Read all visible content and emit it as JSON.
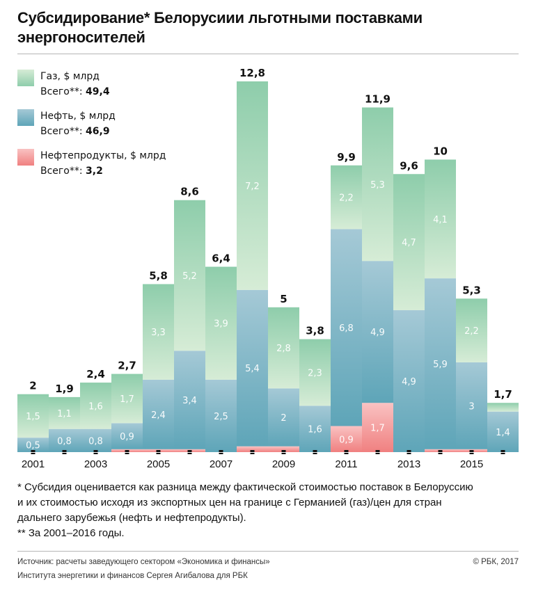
{
  "title": "Субсидирование* Белорусиии льготными поставками энергоносителей",
  "legend": [
    {
      "name": "Газ, $ млрд",
      "total_label": "Всего**:",
      "total": "49,4",
      "color_top": "#d6ecd6",
      "color_bottom": "#8ecdab"
    },
    {
      "name": "Нефть, $ млрд",
      "total_label": "Всего**:",
      "total": "46,9",
      "color_top": "#a5c9d6",
      "color_bottom": "#5ea5b8"
    },
    {
      "name": "Нефтепродукты, $ млрд",
      "total_label": "Всего**:",
      "total": "3,2",
      "color_top": "#f9c2c2",
      "color_bottom": "#f08080"
    }
  ],
  "chart_data": {
    "type": "bar",
    "stacked": true,
    "title": "Субсидирование* Белорусиии льготными поставками энергоносителей",
    "xlabel": "",
    "ylabel": "$ млрд",
    "ylim": [
      0,
      12.8
    ],
    "grid": false,
    "legend_position": "top-left",
    "categories": [
      "2001",
      "2002",
      "2003",
      "2004",
      "2005",
      "2006",
      "2007",
      "2008",
      "2009",
      "2010",
      "2011",
      "2012",
      "2013",
      "2014",
      "2015",
      "2016"
    ],
    "x_tick_labels": [
      "2001",
      "",
      "2003",
      "",
      "2005",
      "",
      "2007",
      "",
      "2009",
      "",
      "2011",
      "",
      "2013",
      "",
      "2015",
      ""
    ],
    "series": [
      {
        "name": "Нефтепродукты",
        "values": [
          0,
          0,
          0,
          0.1,
          0.1,
          0.1,
          0,
          0.2,
          0.2,
          0,
          0.9,
          1.7,
          0,
          0.1,
          0.1,
          0
        ],
        "labels": [
          "",
          "",
          "",
          "",
          "",
          "",
          "",
          "",
          "",
          "",
          "0,9",
          "1,7",
          "",
          "",
          "",
          ""
        ]
      },
      {
        "name": "Нефть",
        "values": [
          0.5,
          0.8,
          0.8,
          0.9,
          2.4,
          3.4,
          2.5,
          5.4,
          2,
          1.6,
          6.8,
          4.9,
          4.9,
          5.9,
          3,
          1.4
        ],
        "labels": [
          "0,5",
          "0,8",
          "0,8",
          "0,9",
          "2,4",
          "3,4",
          "2,5",
          "5,4",
          "2",
          "1,6",
          "6,8",
          "4,9",
          "4,9",
          "5,9",
          "3",
          "1,4"
        ]
      },
      {
        "name": "Газ",
        "values": [
          1.5,
          1.1,
          1.6,
          1.7,
          3.3,
          5.2,
          3.9,
          7.2,
          2.8,
          2.3,
          2.2,
          5.3,
          4.7,
          4.1,
          2.2,
          0.3
        ],
        "labels": [
          "1,5",
          "1,1",
          "1,6",
          "1,7",
          "3,3",
          "5,2",
          "3,9",
          "7,2",
          "2,8",
          "2,3",
          "2,2",
          "5,3",
          "4,7",
          "4,1",
          "2,2",
          ""
        ]
      }
    ],
    "totals": [
      2,
      1.9,
      2.4,
      2.7,
      5.8,
      8.6,
      6.4,
      12.8,
      5,
      3.8,
      9.9,
      11.9,
      9.6,
      10,
      5.3,
      1.7
    ],
    "total_labels": [
      "2",
      "1,9",
      "2,4",
      "2,7",
      "5,8",
      "8,6",
      "6,4",
      "12,8",
      "5",
      "3,8",
      "9,9",
      "11,9",
      "9,6",
      "10",
      "5,3",
      "1,7"
    ]
  },
  "notes": [
    "* Субсидия оценивается как разница между фактической стоимостью поставок в Белоруссию",
    "и их стоимостью исходя из экспортных цен на границе с Германией (газ)/цен для стран",
    "дальнего зарубежья (нефть и нефтепродукты).",
    "** За 2001–2016 годы."
  ],
  "source": [
    "Источник: расчеты заведующего сектором «Экономика и финансы»",
    "Института энергетики и финансов Сергея Агибалова для РБК"
  ],
  "copyright": "© РБК, 2017"
}
